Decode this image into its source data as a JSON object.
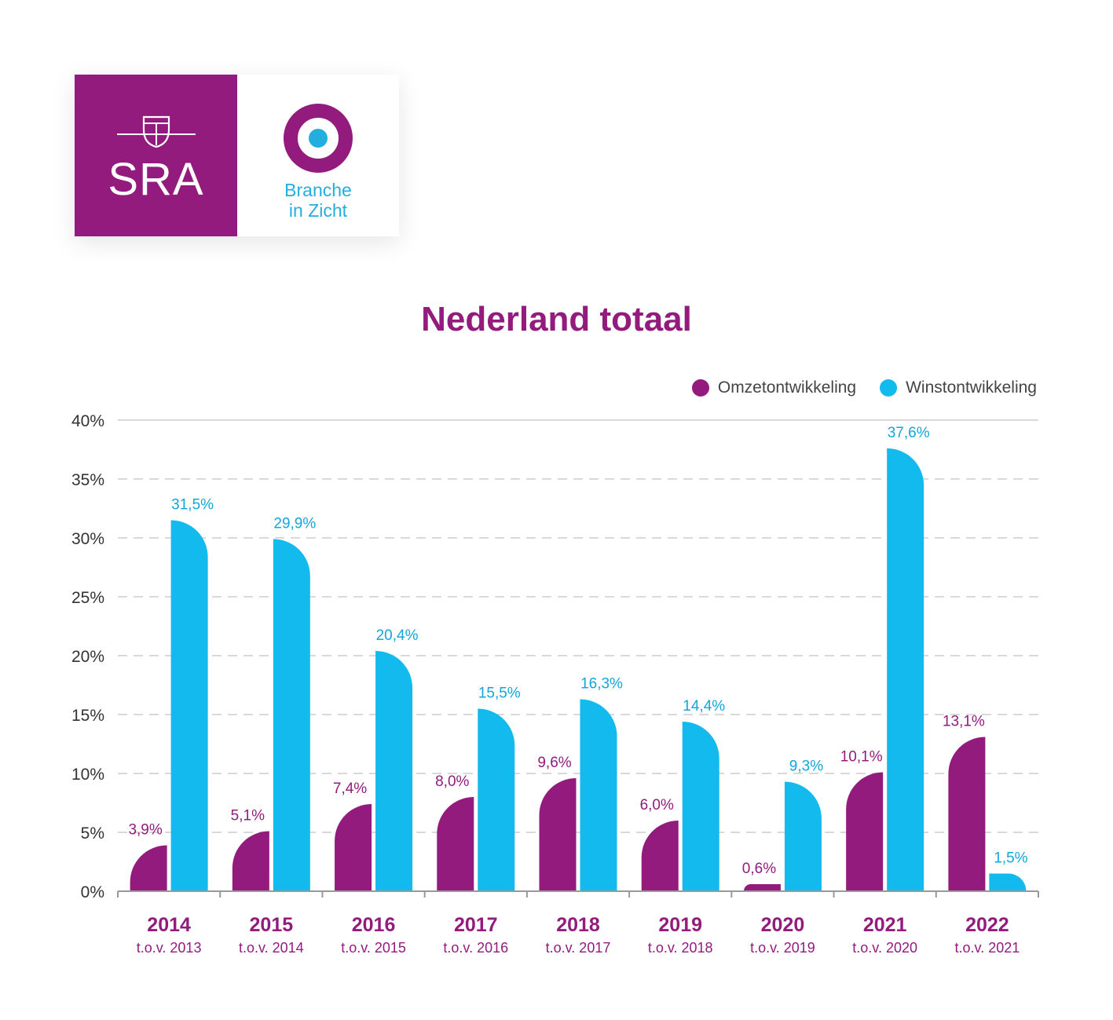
{
  "logo": {
    "left_text": "SRA",
    "right_line1": "Branche",
    "right_line2": "in Zicht",
    "crest_icon": "shield-crest-icon",
    "ring_icon": "target-ring-icon"
  },
  "colors": {
    "omzet": "#931B7E",
    "winst": "#12BAEE",
    "grid": "#d9d9d9",
    "axis_text": "#333333",
    "year_text": "#931B7E"
  },
  "chart_data": {
    "type": "bar",
    "title": "Nederland totaal",
    "ylim": [
      0,
      40
    ],
    "yticks": [
      0,
      5,
      10,
      15,
      20,
      25,
      30,
      35,
      40
    ],
    "ytick_labels": [
      "0%",
      "5%",
      "10%",
      "15%",
      "20%",
      "25%",
      "30%",
      "35%",
      "40%"
    ],
    "grid": true,
    "legend_position": "top-right",
    "categories": [
      "2014",
      "2015",
      "2016",
      "2017",
      "2018",
      "2019",
      "2020",
      "2021",
      "2022"
    ],
    "sublabels": [
      "t.o.v. 2013",
      "t.o.v. 2014",
      "t.o.v. 2015",
      "t.o.v. 2016",
      "t.o.v. 2017",
      "t.o.v. 2018",
      "t.o.v. 2019",
      "t.o.v. 2020",
      "t.o.v. 2021"
    ],
    "series": [
      {
        "name": "Omzetontwikkeling",
        "values": [
          3.9,
          5.1,
          7.4,
          8.0,
          9.6,
          6.0,
          0.6,
          10.1,
          13.1
        ],
        "labels": [
          "3,9%",
          "5,1%",
          "7,4%",
          "8,0%",
          "9,6%",
          "6,0%",
          "0,6%",
          "10,1%",
          "13,1%"
        ]
      },
      {
        "name": "Winstontwikkeling",
        "values": [
          31.5,
          29.9,
          20.4,
          15.5,
          16.3,
          14.4,
          9.3,
          37.6,
          1.5
        ],
        "labels": [
          "31,5%",
          "29,9%",
          "20,4%",
          "15,5%",
          "16,3%",
          "14,4%",
          "9,3%",
          "37,6%",
          "1,5%"
        ]
      }
    ]
  }
}
